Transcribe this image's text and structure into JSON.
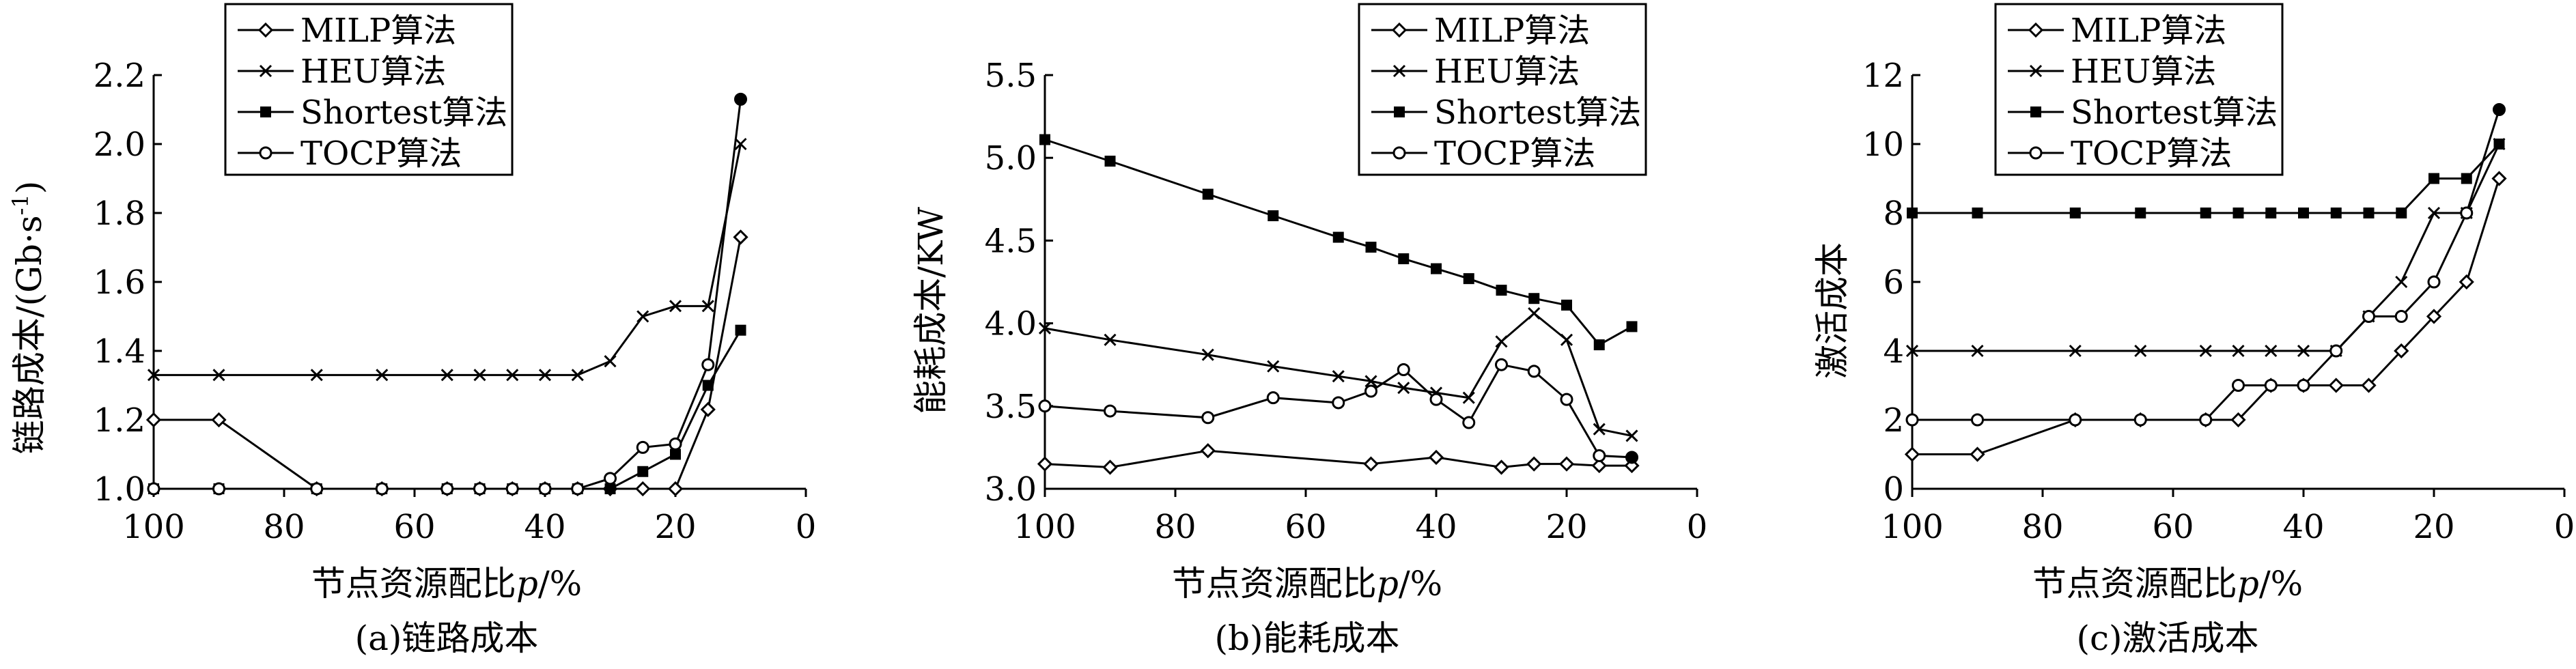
{
  "charts": [
    {
      "id": "a",
      "caption": "(a)链路成本",
      "xlabel_main": "节点资源配比",
      "xlabel_var": "p",
      "xlabel_unit": "/%",
      "ylabel_main": "链路成本/(Gb·s",
      "ylabel_sup": "-1",
      "ylabel_end": ")"
    },
    {
      "id": "b",
      "caption": "(b)能耗成本",
      "xlabel_main": "节点资源配比",
      "xlabel_var": "p",
      "xlabel_unit": "/%",
      "ylabel_main": "能耗成本/KW",
      "ylabel_sup": "",
      "ylabel_end": ""
    },
    {
      "id": "c",
      "caption": "(c)激活成本",
      "xlabel_main": "节点资源配比",
      "xlabel_var": "p",
      "xlabel_unit": "/%",
      "ylabel_main": "激活成本",
      "ylabel_sup": "",
      "ylabel_end": ""
    }
  ],
  "chart_data": [
    {
      "type": "line",
      "title": "(a)链路成本",
      "xlabel": "节点资源配比p/%",
      "ylabel": "链路成本/(Gb·s-1)",
      "xlim": [
        100,
        0
      ],
      "ylim": [
        1.0,
        2.2
      ],
      "xticks": [
        "100",
        "80",
        "60",
        "40",
        "20",
        "0"
      ],
      "xtick_values": [
        100,
        80,
        60,
        40,
        20,
        0
      ],
      "yticks": [
        "1.0",
        "1.2",
        "1.4",
        "1.6",
        "1.8",
        "2.0",
        "2.2"
      ],
      "ytick_values": [
        1.0,
        1.2,
        1.4,
        1.6,
        1.8,
        2.0,
        2.2
      ],
      "legend_position": "top-center",
      "series": [
        {
          "name": "MILP算法",
          "marker": "diamond",
          "x": [
            100,
            90,
            75,
            65,
            55,
            50,
            45,
            40,
            35,
            30,
            25,
            20,
            15,
            10
          ],
          "y": [
            1.2,
            1.2,
            1.0,
            1.0,
            1.0,
            1.0,
            1.0,
            1.0,
            1.0,
            1.0,
            1.0,
            1.0,
            1.23,
            1.73
          ]
        },
        {
          "name": "HEU算法",
          "marker": "x",
          "x": [
            100,
            90,
            75,
            65,
            55,
            50,
            45,
            40,
            35,
            30,
            25,
            20,
            15,
            10
          ],
          "y": [
            1.33,
            1.33,
            1.33,
            1.33,
            1.33,
            1.33,
            1.33,
            1.33,
            1.33,
            1.37,
            1.5,
            1.53,
            1.53,
            2.0
          ]
        },
        {
          "name": "Shortest算法",
          "marker": "square",
          "x": [
            100,
            90,
            75,
            65,
            55,
            50,
            45,
            40,
            35,
            30,
            25,
            20,
            15,
            10
          ],
          "y": [
            1.0,
            1.0,
            1.0,
            1.0,
            1.0,
            1.0,
            1.0,
            1.0,
            1.0,
            1.0,
            1.05,
            1.1,
            1.3,
            1.46
          ]
        },
        {
          "name": "TOCP算法",
          "marker": "circle",
          "x": [
            100,
            90,
            75,
            65,
            55,
            50,
            45,
            40,
            35,
            30,
            25,
            20,
            15,
            10
          ],
          "y": [
            1.0,
            1.0,
            1.0,
            1.0,
            1.0,
            1.0,
            1.0,
            1.0,
            1.0,
            1.03,
            1.12,
            1.13,
            1.36,
            2.13
          ]
        }
      ]
    },
    {
      "type": "line",
      "title": "(b)能耗成本",
      "xlabel": "节点资源配比p/%",
      "ylabel": "能耗成本/KW",
      "xlim": [
        100,
        0
      ],
      "ylim": [
        3.0,
        5.5
      ],
      "xticks": [
        "100",
        "80",
        "60",
        "40",
        "20",
        "0"
      ],
      "xtick_values": [
        100,
        80,
        60,
        40,
        20,
        0
      ],
      "yticks": [
        "3.0",
        "3.5",
        "4.0",
        "4.5",
        "5.0",
        "5.5"
      ],
      "ytick_values": [
        3.0,
        3.5,
        4.0,
        4.5,
        5.0,
        5.5
      ],
      "legend_position": "top-center",
      "series": [
        {
          "name": "MILP算法",
          "marker": "diamond",
          "x": [
            100,
            90,
            75,
            50,
            40,
            30,
            25,
            20,
            15,
            10
          ],
          "y": [
            3.15,
            3.13,
            3.23,
            3.15,
            3.19,
            3.13,
            3.15,
            3.15,
            3.14,
            3.14
          ]
        },
        {
          "name": "HEU算法",
          "marker": "x",
          "x": [
            100,
            90,
            75,
            65,
            55,
            50,
            45,
            40,
            35,
            30,
            25,
            20,
            15,
            10
          ],
          "y": [
            3.97,
            3.9,
            3.81,
            3.74,
            3.68,
            3.65,
            3.61,
            3.58,
            3.55,
            3.89,
            4.06,
            3.9,
            3.36,
            3.32
          ]
        },
        {
          "name": "Shortest算法",
          "marker": "square",
          "x": [
            100,
            90,
            75,
            65,
            55,
            50,
            45,
            40,
            35,
            30,
            25,
            20,
            15,
            10
          ],
          "y": [
            5.11,
            4.98,
            4.78,
            4.65,
            4.52,
            4.46,
            4.39,
            4.33,
            4.27,
            4.2,
            4.15,
            4.11,
            3.87,
            3.98
          ]
        },
        {
          "name": "TOCP算法",
          "marker": "circle",
          "x": [
            100,
            90,
            75,
            65,
            55,
            50,
            45,
            40,
            35,
            30,
            25,
            20,
            15,
            10
          ],
          "y": [
            3.5,
            3.47,
            3.43,
            3.55,
            3.52,
            3.59,
            3.72,
            3.54,
            3.4,
            3.75,
            3.71,
            3.54,
            3.2,
            3.19
          ]
        }
      ]
    },
    {
      "type": "line",
      "title": "(c)激活成本",
      "xlabel": "节点资源配比p/%",
      "ylabel": "激活成本",
      "xlim": [
        100,
        0
      ],
      "ylim": [
        0,
        12
      ],
      "xticks": [
        "100",
        "80",
        "60",
        "40",
        "20",
        "0"
      ],
      "xtick_values": [
        100,
        80,
        60,
        40,
        20,
        0
      ],
      "yticks": [
        "0",
        "2",
        "4",
        "6",
        "8",
        "10",
        "12"
      ],
      "ytick_values": [
        0,
        2,
        4,
        6,
        8,
        10,
        12
      ],
      "legend_position": "top-center",
      "series": [
        {
          "name": "MILP算法",
          "marker": "diamond",
          "x": [
            100,
            90,
            75,
            65,
            55,
            50,
            45,
            40,
            35,
            30,
            25,
            20,
            15,
            10
          ],
          "y": [
            1,
            1,
            2,
            2,
            2,
            2,
            3,
            3,
            3,
            3,
            4,
            5,
            6,
            9
          ]
        },
        {
          "name": "HEU算法",
          "marker": "x",
          "x": [
            100,
            90,
            75,
            65,
            55,
            50,
            45,
            40,
            35,
            30,
            25,
            20,
            15,
            10
          ],
          "y": [
            4,
            4,
            4,
            4,
            4,
            4,
            4,
            4,
            4,
            5,
            6,
            8,
            8,
            10
          ]
        },
        {
          "name": "Shortest算法",
          "marker": "square",
          "x": [
            100,
            90,
            75,
            65,
            55,
            50,
            45,
            40,
            35,
            30,
            25,
            20,
            15,
            10
          ],
          "y": [
            8,
            8,
            8,
            8,
            8,
            8,
            8,
            8,
            8,
            8,
            8,
            9,
            9,
            10
          ]
        },
        {
          "name": "TOCP算法",
          "marker": "circle",
          "x": [
            100,
            90,
            75,
            65,
            55,
            50,
            45,
            40,
            35,
            30,
            25,
            20,
            15,
            10
          ],
          "y": [
            2,
            2,
            2,
            2,
            2,
            3,
            3,
            3,
            4,
            5,
            5,
            6,
            8,
            11
          ]
        }
      ]
    }
  ]
}
